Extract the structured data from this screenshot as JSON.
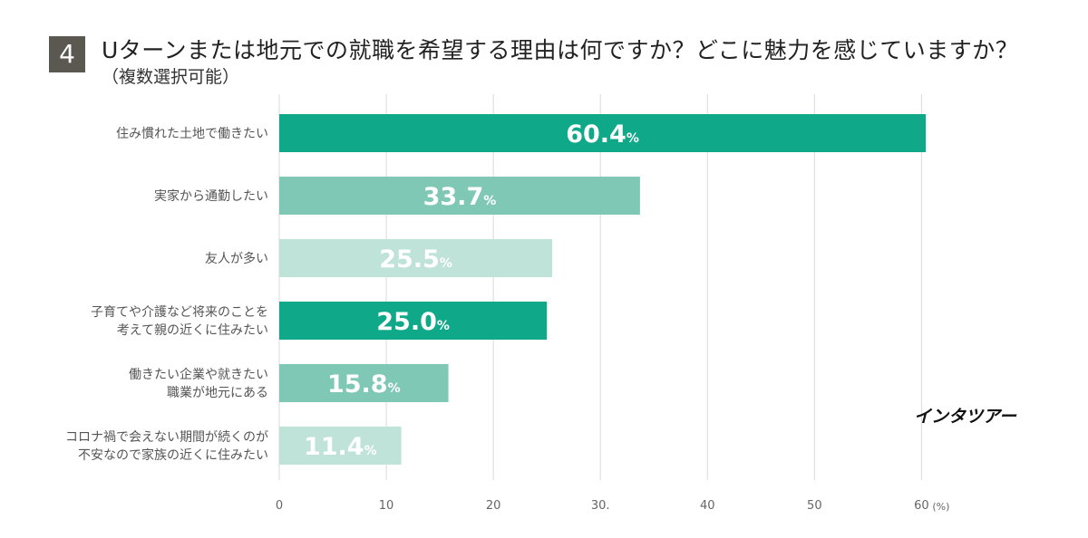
{
  "header": {
    "question_number": "4",
    "title": "Uターンまたは地元での就職を希望する理由は何ですか？どこに魅力を感じていますか？",
    "subtitle": "（複数選択可能）"
  },
  "brand": "インタツアー",
  "chart_data": {
    "type": "bar",
    "orientation": "horizontal",
    "categories": [
      [
        "住み慣れた土地で働きたい"
      ],
      [
        "実家から通勤したい"
      ],
      [
        "友人が多い"
      ],
      [
        "子育てや介護など将来のことを",
        "考えて親の近くに住みたい"
      ],
      [
        "働きたい企業や就きたい",
        "職業が地元にある"
      ],
      [
        "コロナ禍で会えない期間が続くのが",
        "不安なので家族の近くに住みたい"
      ]
    ],
    "values": [
      60.4,
      33.7,
      25.5,
      25.0,
      15.8,
      11.4
    ],
    "value_labels": [
      "60.4",
      "33.7",
      "25.5",
      "25.0",
      "15.8",
      "11.4"
    ],
    "value_unit": "%",
    "bar_colors": [
      "#0fa98a",
      "#7ec8b5",
      "#bfe3d8",
      "#0fa98a",
      "#7ec8b5",
      "#bfe3d8"
    ],
    "xlim": [
      0,
      62
    ],
    "ticks": [
      0,
      10,
      20,
      30,
      40,
      50,
      60
    ],
    "tick_labels": [
      "0",
      "10",
      "20",
      "30.",
      "40",
      "50",
      "60"
    ],
    "x_unit_label": "(%)",
    "grid": true,
    "grid_color": "#d9d9d9"
  }
}
